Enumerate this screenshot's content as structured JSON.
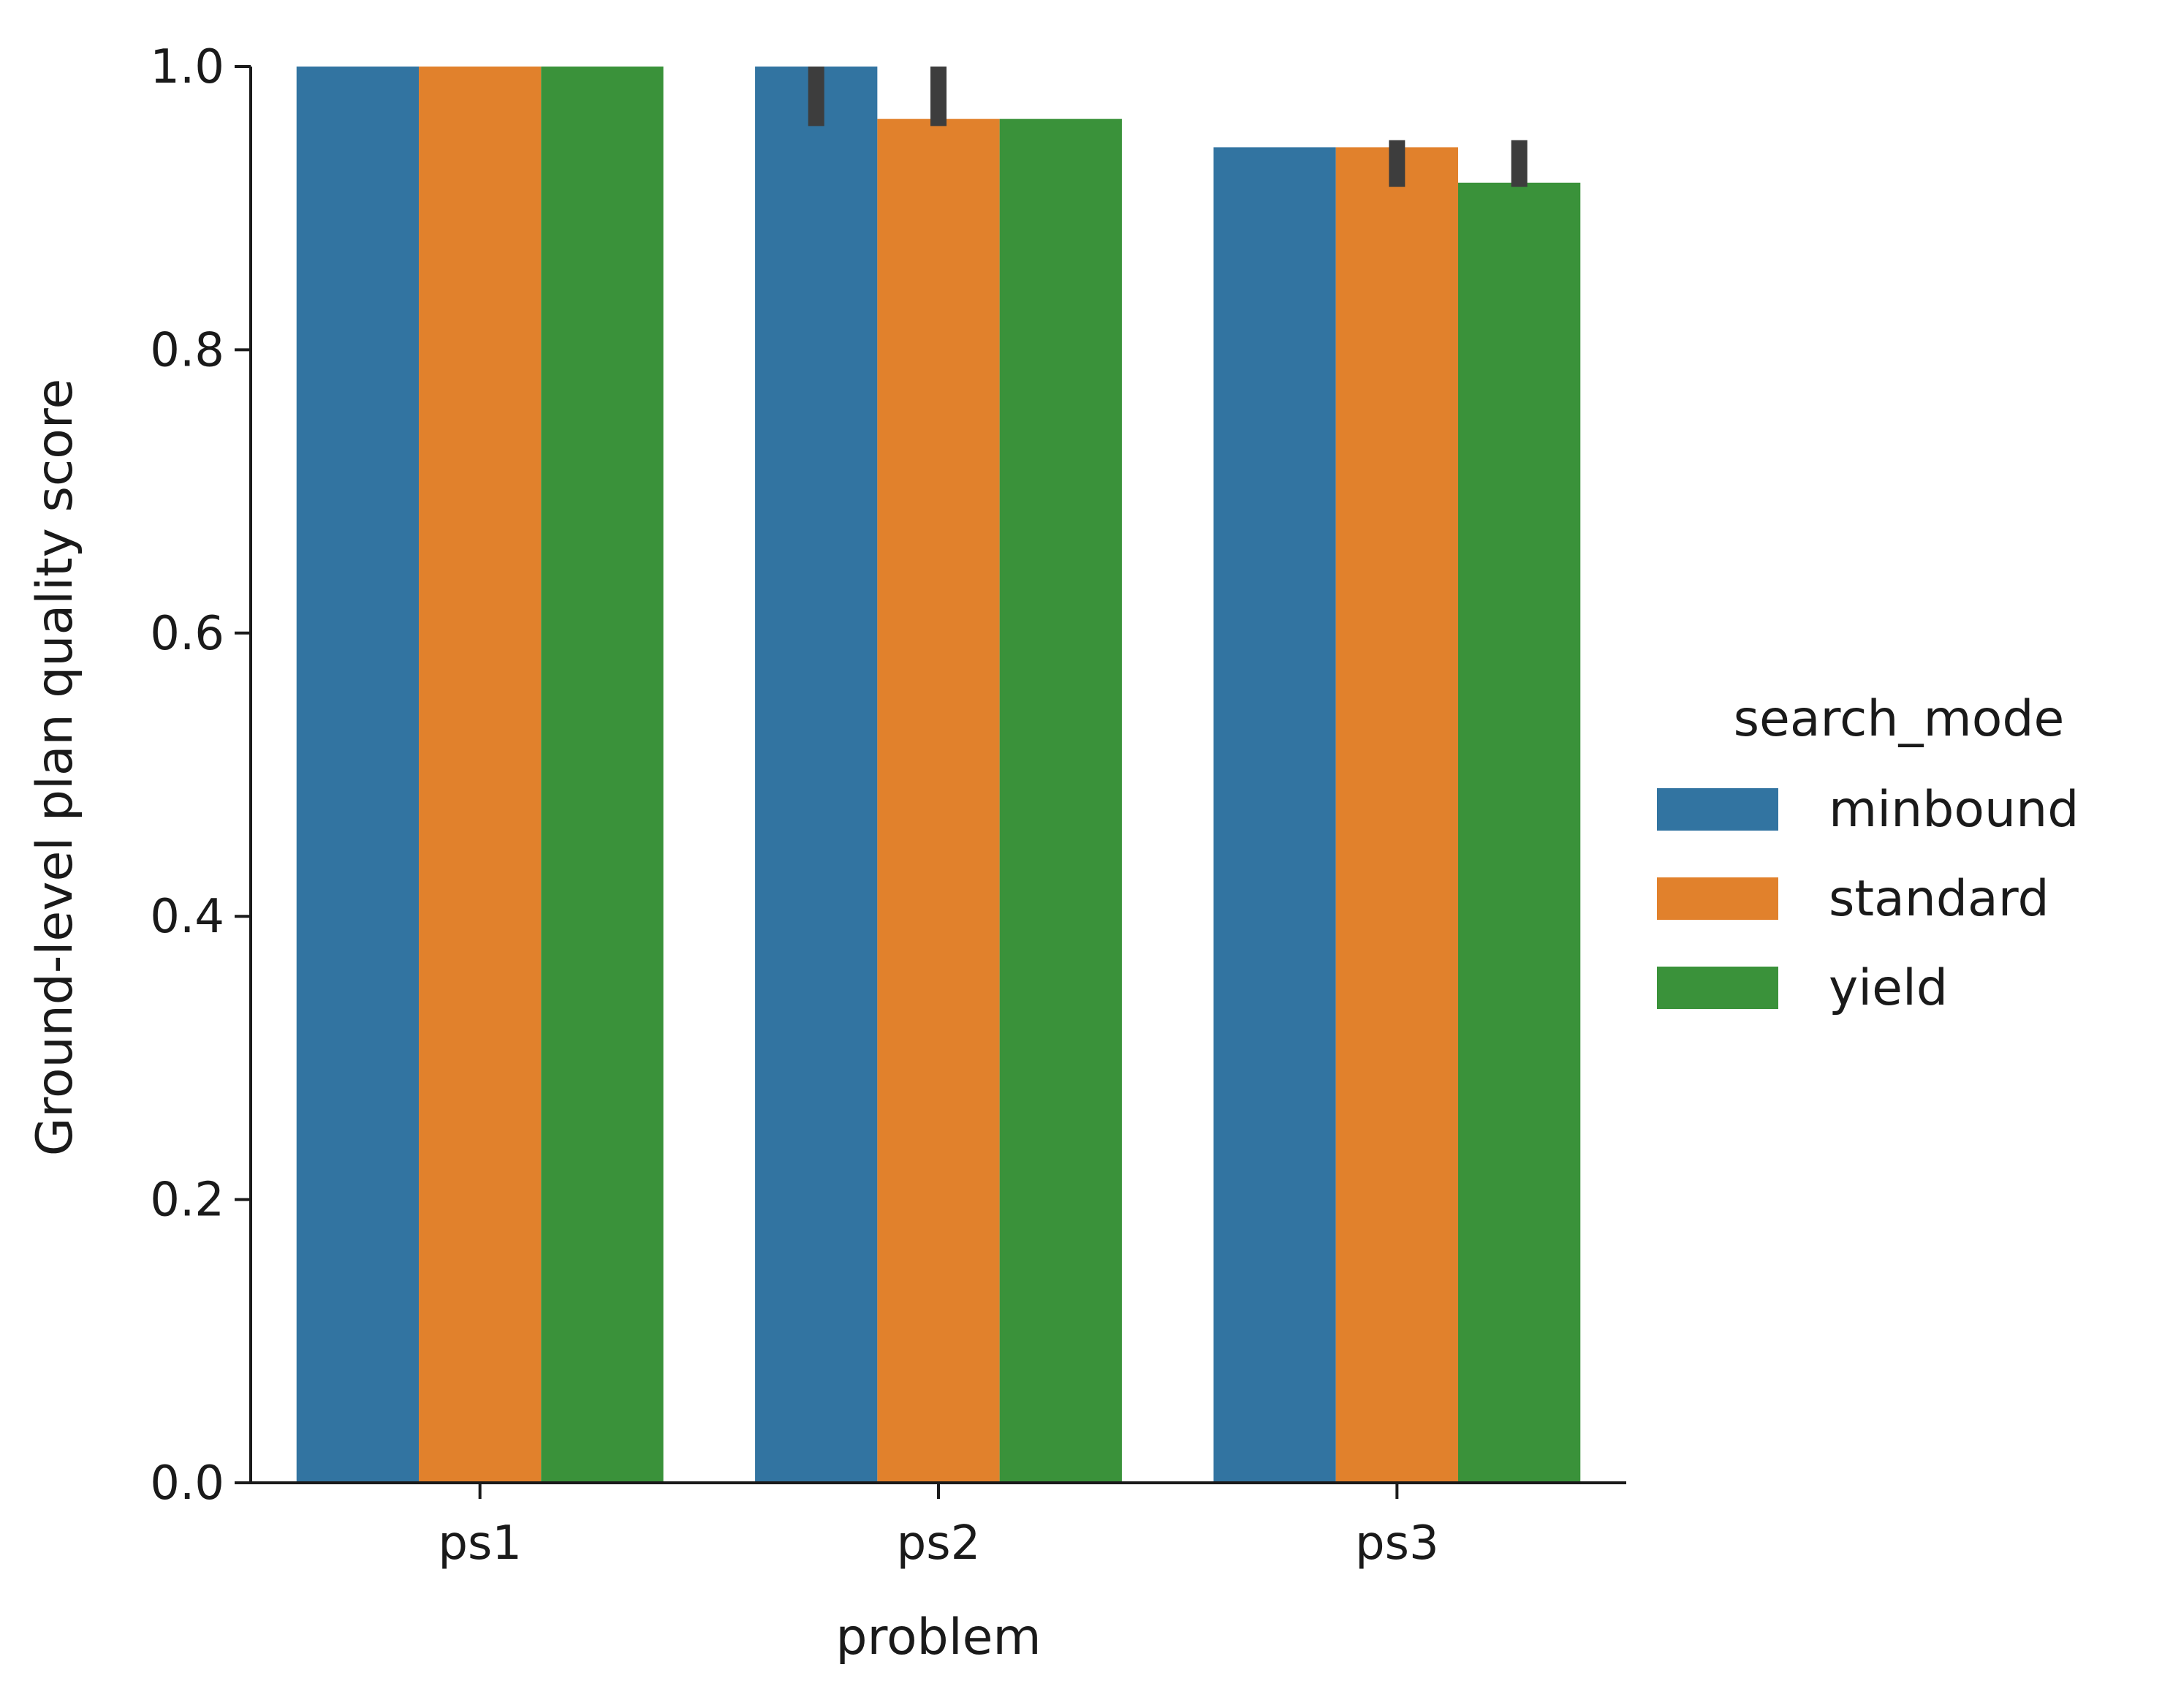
{
  "chart_data": {
    "type": "bar",
    "title": "",
    "xlabel": "problem",
    "ylabel": "Ground-level plan quality score",
    "categories": [
      "ps1",
      "ps2",
      "ps3"
    ],
    "ylim": [
      0,
      1.0
    ],
    "yticks": [
      "0.0",
      "0.2",
      "0.4",
      "0.6",
      "0.8",
      "1.0"
    ],
    "grid": false,
    "legend": {
      "title": "search_mode",
      "placement": "right"
    },
    "series": [
      {
        "name": "minbound",
        "color": "#3274a1",
        "values": [
          1.0,
          1.0,
          0.943
        ],
        "error": [
          null,
          [
            0.958,
            1.0
          ],
          null
        ]
      },
      {
        "name": "standard",
        "color": "#e1812c",
        "values": [
          1.0,
          0.963,
          0.943
        ],
        "error": [
          null,
          [
            0.958,
            1.0
          ],
          [
            0.915,
            0.948
          ]
        ]
      },
      {
        "name": "yield",
        "color": "#3a923a",
        "values": [
          1.0,
          0.963,
          0.918
        ],
        "error": [
          null,
          null,
          [
            0.915,
            0.948
          ]
        ]
      }
    ],
    "error_bar_color": "#3d3d3d"
  }
}
